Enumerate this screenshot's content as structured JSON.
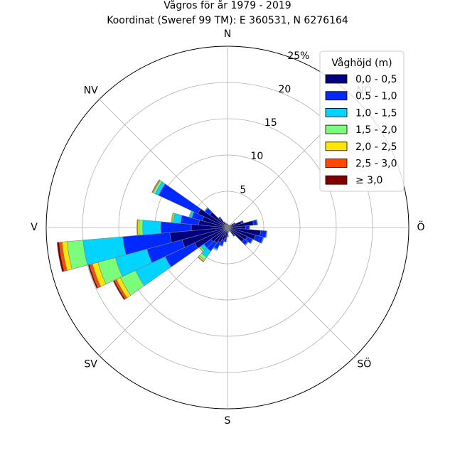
{
  "title_lines": [
    "Vågros för år 1979 - 2019",
    "Koordinat (Sweref 99 TM): E 360531, N 6276164"
  ],
  "legend": {
    "title": "Våghöjd (m)",
    "placement": "top-right"
  },
  "colors": [
    "#00007f",
    "#0029ff",
    "#00d4ff",
    "#7bff7b",
    "#ffe500",
    "#ff4a00",
    "#7f0000"
  ],
  "chart_data": {
    "type": "polar-stacked-bar",
    "radial_unit": "%",
    "rmax": 25,
    "ring_ticks": [
      5,
      10,
      15,
      20,
      25
    ],
    "ring_tick_labels": [
      "5",
      "10",
      "15",
      "20",
      "25%"
    ],
    "direction_labels": [
      "N",
      "NÖ",
      "Ö",
      "SÖ",
      "S",
      "SV",
      "V",
      "NV"
    ],
    "direction_angles": [
      0,
      45,
      90,
      135,
      180,
      225,
      270,
      315
    ],
    "sector_width_deg": 10,
    "bins": [
      "0,0 - 0,5",
      "0,5 - 1,0",
      "1,0 - 1,5",
      "1,5 - 2,0",
      "2,0 - 2,5",
      "2,5 - 3,0",
      "≥ 3,0"
    ],
    "sectors": [
      {
        "dir": 0,
        "values": [
          0.5,
          0,
          0,
          0,
          0,
          0,
          0
        ]
      },
      {
        "dir": 10,
        "values": [
          0.4,
          0,
          0,
          0,
          0,
          0,
          0
        ]
      },
      {
        "dir": 20,
        "values": [
          0.4,
          0,
          0,
          0,
          0,
          0,
          0
        ]
      },
      {
        "dir": 30,
        "values": [
          0.4,
          0,
          0,
          0,
          0,
          0,
          0
        ]
      },
      {
        "dir": 40,
        "values": [
          0.4,
          0,
          0,
          0,
          0,
          0,
          0
        ]
      },
      {
        "dir": 50,
        "values": [
          0.5,
          0,
          0,
          0,
          0,
          0,
          0
        ]
      },
      {
        "dir": 60,
        "values": [
          1.0,
          0.2,
          0,
          0,
          0,
          0,
          0
        ]
      },
      {
        "dir": 70,
        "values": [
          2.0,
          0.3,
          0,
          0,
          0,
          0,
          0
        ]
      },
      {
        "dir": 80,
        "values": [
          3.6,
          0.5,
          0.1,
          0,
          0,
          0,
          0
        ]
      },
      {
        "dir": 90,
        "values": [
          2.5,
          0.5,
          0.1,
          0,
          0,
          0,
          0
        ]
      },
      {
        "dir": 100,
        "values": [
          4.6,
          0.8,
          0.1,
          0,
          0,
          0,
          0
        ]
      },
      {
        "dir": 110,
        "values": [
          4.0,
          1.1,
          0.1,
          0,
          0,
          0,
          0
        ]
      },
      {
        "dir": 120,
        "values": [
          3.0,
          0.8,
          0.1,
          0,
          0,
          0,
          0
        ]
      },
      {
        "dir": 130,
        "values": [
          2.8,
          0.6,
          0.1,
          0,
          0,
          0,
          0
        ]
      },
      {
        "dir": 140,
        "values": [
          1.2,
          0.3,
          0,
          0,
          0,
          0,
          0
        ]
      },
      {
        "dir": 150,
        "values": [
          0.5,
          0.1,
          0,
          0,
          0,
          0,
          0
        ]
      },
      {
        "dir": 160,
        "values": [
          0.4,
          0,
          0,
          0,
          0,
          0,
          0
        ]
      },
      {
        "dir": 170,
        "values": [
          0.6,
          0.1,
          0,
          0,
          0,
          0,
          0
        ]
      },
      {
        "dir": 180,
        "values": [
          1.0,
          0.3,
          0,
          0,
          0,
          0,
          0
        ]
      },
      {
        "dir": 190,
        "values": [
          1.5,
          0.5,
          0,
          0,
          0,
          0,
          0
        ]
      },
      {
        "dir": 200,
        "values": [
          1.8,
          0.8,
          0.1,
          0,
          0,
          0,
          0
        ]
      },
      {
        "dir": 210,
        "values": [
          2.3,
          1.0,
          0.2,
          0,
          0,
          0,
          0
        ]
      },
      {
        "dir": 220,
        "values": [
          2.6,
          1.4,
          1.0,
          0.5,
          0.2,
          0.1,
          0
        ]
      },
      {
        "dir": 230,
        "values": [
          2.8,
          1.2,
          0.5,
          0.2,
          0.1,
          0,
          0
        ]
      },
      {
        "dir": 240,
        "values": [
          5.0,
          4.5,
          4.5,
          2.3,
          0.6,
          0.3,
          0.2
        ]
      },
      {
        "dir": 250,
        "values": [
          6.5,
          5.0,
          4.5,
          2.5,
          0.8,
          0.4,
          0.2
        ]
      },
      {
        "dir": 260,
        "values": [
          8.0,
          6.5,
          5.5,
          2.2,
          0.7,
          0.4,
          0.3
        ]
      },
      {
        "dir": 270,
        "values": [
          5.0,
          4.2,
          2.5,
          0.5,
          0.2,
          0.1,
          0
        ]
      },
      {
        "dir": 280,
        "values": [
          4.0,
          2.5,
          1.0,
          0.2,
          0.1,
          0,
          0
        ]
      },
      {
        "dir": 290,
        "values": [
          3.6,
          1.5,
          0.3,
          0.1,
          0,
          0,
          0
        ]
      },
      {
        "dir": 300,
        "values": [
          4.5,
          6.0,
          0.5,
          0.3,
          0.1,
          0.1,
          0
        ]
      },
      {
        "dir": 310,
        "values": [
          3.0,
          0.8,
          0.1,
          0,
          0,
          0,
          0
        ]
      },
      {
        "dir": 320,
        "values": [
          1.5,
          0.3,
          0,
          0,
          0,
          0,
          0
        ]
      },
      {
        "dir": 330,
        "values": [
          0.8,
          0.1,
          0,
          0,
          0,
          0,
          0
        ]
      },
      {
        "dir": 340,
        "values": [
          0.6,
          0,
          0,
          0,
          0,
          0,
          0
        ]
      },
      {
        "dir": 350,
        "values": [
          0.5,
          0,
          0,
          0,
          0,
          0,
          0
        ]
      }
    ]
  }
}
